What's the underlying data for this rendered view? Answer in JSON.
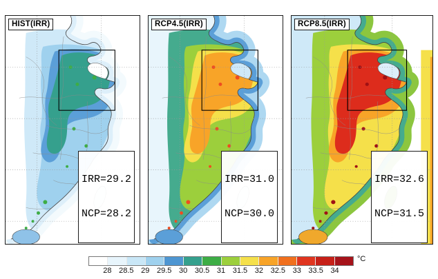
{
  "panels": [
    {
      "title": "HIST(IRR)",
      "stats": {
        "irr": "IRR=29.2",
        "ncp": "NCP=28.2"
      },
      "palette": {
        "sea2": "#f3fafd",
        "sea1": "#ddeffa",
        "fringe": "#ffffff",
        "outer": "#cfe9f8",
        "mid": "#9fd1ee",
        "inner": "#5b9fd8",
        "core": "#35a08d",
        "speck": "#3dad45",
        "bohai": "#ffffff",
        "taiwan": "#eaf6fc",
        "hainan": "#8fc2e8",
        "edge1": null,
        "edge2": null
      }
    },
    {
      "title": "RCP4.5(IRR)",
      "stats": {
        "irr": "IRR=31.0",
        "ncp": "NCP=30.0"
      },
      "palette": {
        "sea2": "#aed8f1",
        "sea1": "#5b9fd8",
        "fringe": "#e8f5fc",
        "outer": "#45ab8e",
        "mid": "#9ccf3c",
        "inner": "#f5e04a",
        "core": "#f8a428",
        "speck": "#ee4d20",
        "bohai": "#cfe9f8",
        "taiwan": "#e8f5fc",
        "hainan": "#5b9fd8",
        "edge1": null,
        "edge2": null
      }
    },
    {
      "title": "RCP8.5(IRR)",
      "stats": {
        "irr": "IRR=32.6",
        "ncp": "NCP=31.5"
      },
      "palette": {
        "sea2": "#8cc63f",
        "sea1": "#45ab8e",
        "fringe": "#cfe9f8",
        "outer": "#9ccf3c",
        "mid": "#f5e04a",
        "inner": "#f8a428",
        "core": "#dd2c1c",
        "speck": "#a01114",
        "bohai": "#dceef9",
        "taiwan": "#8cc63f",
        "hainan": "#f0a82c",
        "edge1": "#f5e04a",
        "edge2": "#f8a428"
      }
    }
  ],
  "colorbar": {
    "unit": "°C",
    "tick_labels": [
      "28",
      "28.5",
      "29",
      "29.5",
      "30",
      "30.5",
      "31",
      "31.5",
      "32",
      "32.5",
      "33",
      "33.5",
      "34"
    ],
    "segment_colors": [
      "#ffffff",
      "#e8f5fc",
      "#c9e7f7",
      "#9fd1ee",
      "#4e96d2",
      "#35a08d",
      "#3dad45",
      "#9ccf3c",
      "#f5e04a",
      "#f8a428",
      "#f1701e",
      "#e0351f",
      "#c62018",
      "#a6131a"
    ]
  },
  "chart_data": {
    "type": "heatmap",
    "subtype": "geographic temperature maps, 3 scenario panels over eastern China",
    "panels": [
      {
        "label": "HIST(IRR)",
        "IRR_mean_C": 29.2,
        "NCP_mean_C": 28.2
      },
      {
        "label": "RCP4.5(IRR)",
        "IRR_mean_C": 31.0,
        "NCP_mean_C": 30.0
      },
      {
        "label": "RCP8.5(IRR)",
        "IRR_mean_C": 32.6,
        "NCP_mean_C": 31.5
      }
    ],
    "colorbar": {
      "unit": "°C",
      "min": 28,
      "max": 34,
      "step": 0.5,
      "ticks": [
        28,
        28.5,
        29,
        29.5,
        30,
        30.5,
        31,
        31.5,
        32,
        32.5,
        33,
        33.5,
        34
      ],
      "position": "bottom"
    },
    "annotations": "Black rectangle in each panel marks the NCP (North China Plain) study region"
  }
}
